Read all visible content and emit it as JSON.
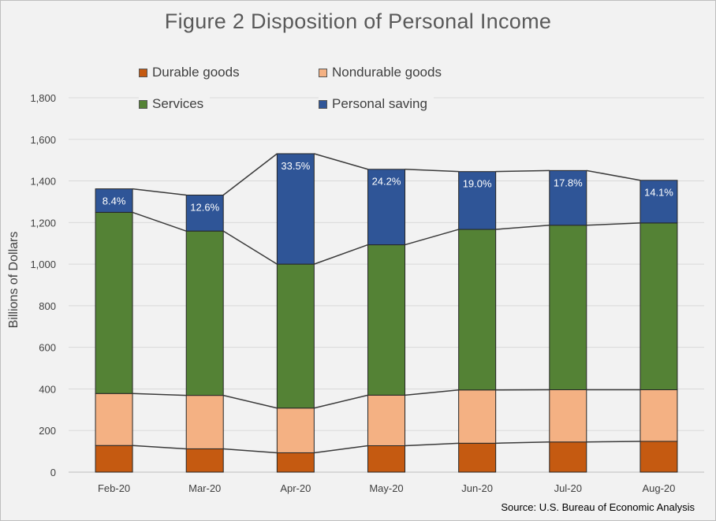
{
  "title": "Figure 2 Disposition of Personal Income",
  "source": "Source: U.S. Bureau of Economic Analysis",
  "chart_data": {
    "type": "bar",
    "stacked": true,
    "title": "Figure 2 Disposition of Personal Income",
    "xlabel": "",
    "ylabel": "Billions of Dollars",
    "ylim": [
      0,
      1800
    ],
    "yticks": [
      0,
      200,
      400,
      600,
      800,
      1000,
      1200,
      1400,
      1600,
      1800
    ],
    "ytick_labels": [
      "0",
      "200",
      "400",
      "600",
      "800",
      "1,000",
      "1,200",
      "1,400",
      "1,600",
      "1,800"
    ],
    "categories": [
      "Feb-20",
      "Mar-20",
      "Apr-20",
      "May-20",
      "Jun-20",
      "Jul-20",
      "Aug-20"
    ],
    "series": [
      {
        "name": "Durable goods",
        "color": "#c55a11",
        "values": [
          128,
          112,
          93,
          127,
          139,
          145,
          148
        ]
      },
      {
        "name": "Nondurable goods",
        "color": "#f4b183",
        "values": [
          250,
          257,
          215,
          243,
          256,
          251,
          248
        ]
      },
      {
        "name": "Services",
        "color": "#548235",
        "values": [
          871,
          790,
          692,
          723,
          772,
          791,
          802
        ]
      },
      {
        "name": "Personal saving",
        "color": "#2f5597",
        "values": [
          113,
          173,
          531,
          363,
          278,
          263,
          205
        ]
      }
    ],
    "saving_rate_labels": [
      "8.4%",
      "12.6%",
      "33.5%",
      "24.2%",
      "19.0%",
      "17.8%",
      "14.1%"
    ],
    "grid": true,
    "legend_position": "top"
  }
}
